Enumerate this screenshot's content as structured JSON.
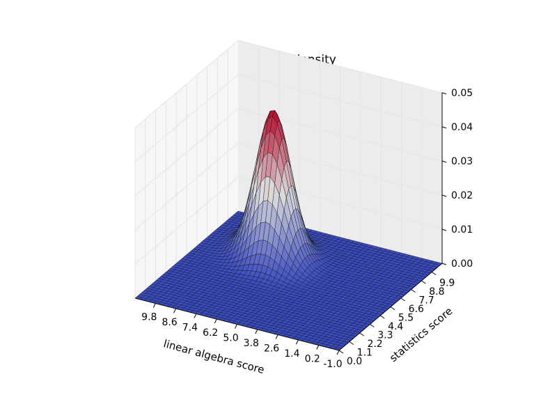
{
  "chart_data": {
    "type": "surface3d",
    "title": "Gaussian density",
    "xlabel": "linear algebra score",
    "ylabel": "statistics score",
    "zlabel": "",
    "x_ticks": [
      "9.8",
      "8.6",
      "7.4",
      "6.2",
      "5.0",
      "3.8",
      "2.6",
      "1.4",
      "0.2",
      "-1.0"
    ],
    "y_ticks": [
      "0.0",
      "1.1",
      "2.2",
      "3.3",
      "4.4",
      "5.5",
      "6.6",
      "7.7",
      "8.8",
      "9.9"
    ],
    "z_ticks": [
      "0.00",
      "0.01",
      "0.02",
      "0.03",
      "0.04",
      "0.05"
    ],
    "xlim": [
      -1.0,
      11.0
    ],
    "ylim": [
      0.0,
      11.0
    ],
    "zlim": [
      0.0,
      0.05
    ],
    "peak": {
      "x": 7.0,
      "y": 7.5,
      "z": 0.043
    },
    "grid": true,
    "colormap": [
      "#3b4cc0",
      "#b40426"
    ]
  }
}
